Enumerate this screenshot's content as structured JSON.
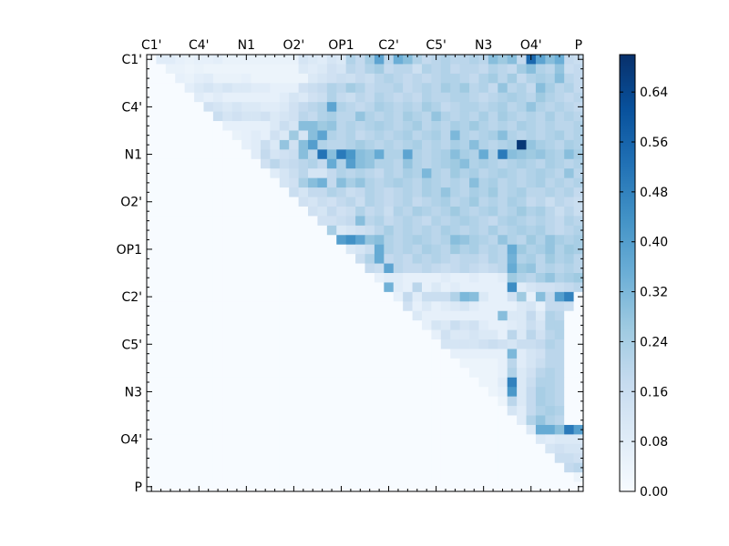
{
  "chart_data": {
    "type": "heatmap",
    "title": "",
    "xlabel": "",
    "ylabel": "",
    "matrix_size": 46,
    "labeled_ticks": [
      {
        "index": 0,
        "label": "C1'"
      },
      {
        "index": 5,
        "label": "C4'"
      },
      {
        "index": 10,
        "label": "N1"
      },
      {
        "index": 15,
        "label": "O2'"
      },
      {
        "index": 20,
        "label": "OP1"
      },
      {
        "index": 25,
        "label": "C2'"
      },
      {
        "index": 30,
        "label": "C5'"
      },
      {
        "index": 35,
        "label": "N3"
      },
      {
        "index": 40,
        "label": "O4'"
      },
      {
        "index": 45,
        "label": "P"
      }
    ],
    "x_tick_position": "top",
    "y_tick_position": "left",
    "grid": false,
    "colormap": "Blues",
    "colormap_stops": [
      "#f7fbff",
      "#deebf7",
      "#c6dbef",
      "#9ecae1",
      "#6baed6",
      "#4292c6",
      "#2171b5",
      "#08519c",
      "#08306b"
    ],
    "vmin": 0.0,
    "vmax": 0.7,
    "colorbar_ticks": [
      "0.00",
      "0.08",
      "0.16",
      "0.24",
      "0.32",
      "0.40",
      "0.48",
      "0.56",
      "0.64"
    ],
    "colorbar_tick_values": [
      0.0,
      0.08,
      0.16,
      0.24,
      0.32,
      0.4,
      0.48,
      0.56,
      0.64
    ],
    "rows": [
      {
        "i": 0,
        "v": [
          0.08,
          0.08,
          0.06,
          0.05,
          0.06,
          0.06,
          0.07,
          0.05,
          0.05,
          0.05,
          0.05,
          0.05,
          0.05,
          0.05,
          0.05,
          0.12,
          0.1,
          0.08,
          0.12,
          0.1,
          0.22,
          0.18,
          0.25,
          0.38,
          0.2,
          0.35,
          0.3,
          0.22,
          0.18,
          0.2,
          0.22,
          0.2,
          0.2,
          0.22,
          0.2,
          0.3,
          0.26,
          0.3,
          0.18,
          0.55,
          0.38,
          0.3,
          0.35,
          0.18,
          0.16
        ]
      },
      {
        "i": 1,
        "v": [
          0.05,
          0.05,
          0.04,
          0.05,
          0.04,
          0.04,
          0.04,
          0.04,
          0.04,
          0.04,
          0.04,
          0.04,
          0.04,
          0.04,
          0.1,
          0.08,
          0.1,
          0.14,
          0.12,
          0.2,
          0.18,
          0.22,
          0.25,
          0.18,
          0.2,
          0.2,
          0.15,
          0.22,
          0.2,
          0.22,
          0.18,
          0.2,
          0.2,
          0.18,
          0.22,
          0.2,
          0.18,
          0.25,
          0.3,
          0.22,
          0.2,
          0.28,
          0.16,
          0.18
        ]
      },
      {
        "i": 2,
        "v": [
          0.06,
          0.05,
          0.07,
          0.08,
          0.05,
          0.05,
          0.05,
          0.06,
          0.04,
          0.04,
          0.04,
          0.04,
          0.04,
          0.04,
          0.1,
          0.12,
          0.14,
          0.16,
          0.15,
          0.18,
          0.16,
          0.2,
          0.22,
          0.2,
          0.18,
          0.2,
          0.18,
          0.2,
          0.22,
          0.22,
          0.2,
          0.18,
          0.22,
          0.25,
          0.2,
          0.25,
          0.18,
          0.22,
          0.24,
          0.22,
          0.3,
          0.2,
          0.18
        ]
      },
      {
        "i": 3,
        "v": [
          0.07,
          0.1,
          0.12,
          0.1,
          0.12,
          0.1,
          0.1,
          0.08,
          0.08,
          0.06,
          0.06,
          0.06,
          0.14,
          0.16,
          0.18,
          0.22,
          0.2,
          0.25,
          0.22,
          0.18,
          0.2,
          0.2,
          0.22,
          0.18,
          0.2,
          0.22,
          0.2,
          0.25,
          0.22,
          0.26,
          0.2,
          0.22,
          0.18,
          0.28,
          0.2,
          0.22,
          0.18,
          0.3,
          0.24,
          0.2,
          0.22,
          0.18
        ]
      },
      {
        "i": 4,
        "v": [
          0.08,
          0.06,
          0.08,
          0.06,
          0.06,
          0.06,
          0.06,
          0.06,
          0.06,
          0.08,
          0.12,
          0.1,
          0.14,
          0.16,
          0.22,
          0.18,
          0.16,
          0.2,
          0.18,
          0.22,
          0.2,
          0.18,
          0.2,
          0.18,
          0.22,
          0.2,
          0.2,
          0.22,
          0.22,
          0.2,
          0.18,
          0.2,
          0.22,
          0.24,
          0.22,
          0.2,
          0.26,
          0.22,
          0.2,
          0.18,
          0.2
        ]
      },
      {
        "i": 5,
        "v": [
          0.14,
          0.12,
          0.1,
          0.12,
          0.1,
          0.1,
          0.08,
          0.08,
          0.1,
          0.14,
          0.18,
          0.2,
          0.22,
          0.38,
          0.22,
          0.2,
          0.18,
          0.2,
          0.24,
          0.22,
          0.2,
          0.22,
          0.2,
          0.25,
          0.22,
          0.18,
          0.2,
          0.22,
          0.22,
          0.2,
          0.22,
          0.24,
          0.2,
          0.22,
          0.28,
          0.22,
          0.2,
          0.22,
          0.2,
          0.18
        ]
      },
      {
        "i": 6,
        "v": [
          0.16,
          0.12,
          0.14,
          0.12,
          0.12,
          0.14,
          0.1,
          0.12,
          0.14,
          0.2,
          0.18,
          0.22,
          0.24,
          0.2,
          0.2,
          0.28,
          0.22,
          0.2,
          0.22,
          0.2,
          0.25,
          0.22,
          0.2,
          0.28,
          0.22,
          0.2,
          0.22,
          0.2,
          0.24,
          0.2,
          0.25,
          0.22,
          0.2,
          0.22,
          0.2,
          0.24,
          0.2,
          0.22,
          0.2
        ]
      },
      {
        "i": 7,
        "v": [
          0.06,
          0.06,
          0.06,
          0.06,
          0.06,
          0.1,
          0.16,
          0.12,
          0.3,
          0.3,
          0.26,
          0.28,
          0.2,
          0.22,
          0.2,
          0.22,
          0.24,
          0.22,
          0.2,
          0.22,
          0.25,
          0.2,
          0.22,
          0.2,
          0.24,
          0.22,
          0.26,
          0.22,
          0.2,
          0.22,
          0.2,
          0.24,
          0.22,
          0.2,
          0.22,
          0.2,
          0.2,
          0.22
        ]
      },
      {
        "i": 8,
        "v": [
          0.05,
          0.06,
          0.08,
          0.06,
          0.14,
          0.1,
          0.26,
          0.12,
          0.3,
          0.38,
          0.22,
          0.2,
          0.22,
          0.18,
          0.2,
          0.22,
          0.2,
          0.22,
          0.24,
          0.2,
          0.22,
          0.24,
          0.2,
          0.32,
          0.22,
          0.2,
          0.22,
          0.24,
          0.3,
          0.22,
          0.2,
          0.22,
          0.2,
          0.22,
          0.24,
          0.2,
          0.22
        ]
      },
      {
        "i": 9,
        "v": [
          0.06,
          0.08,
          0.16,
          0.1,
          0.28,
          0.14,
          0.3,
          0.4,
          0.22,
          0.2,
          0.2,
          0.22,
          0.25,
          0.22,
          0.2,
          0.22,
          0.2,
          0.22,
          0.24,
          0.2,
          0.22,
          0.2,
          0.24,
          0.22,
          0.3,
          0.22,
          0.2,
          0.22,
          0.24,
          0.68,
          0.28,
          0.24,
          0.22,
          0.2,
          0.24,
          0.22
        ]
      },
      {
        "i": 10,
        "v": [
          0.08,
          0.18,
          0.12,
          0.14,
          0.16,
          0.3,
          0.2,
          0.52,
          0.3,
          0.5,
          0.42,
          0.3,
          0.28,
          0.36,
          0.22,
          0.22,
          0.38,
          0.22,
          0.2,
          0.22,
          0.24,
          0.3,
          0.24,
          0.22,
          0.36,
          0.22,
          0.5,
          0.3,
          0.28,
          0.26,
          0.28,
          0.24,
          0.22,
          0.3,
          0.24
        ]
      },
      {
        "i": 11,
        "v": [
          0.14,
          0.2,
          0.16,
          0.18,
          0.2,
          0.22,
          0.18,
          0.36,
          0.22,
          0.4,
          0.3,
          0.28,
          0.22,
          0.22,
          0.2,
          0.28,
          0.22,
          0.2,
          0.22,
          0.24,
          0.26,
          0.3,
          0.22,
          0.24,
          0.22,
          0.2,
          0.22,
          0.24,
          0.22,
          0.2,
          0.24,
          0.22,
          0.2,
          0.22
        ]
      },
      {
        "i": 12,
        "v": [
          0.08,
          0.12,
          0.16,
          0.2,
          0.12,
          0.12,
          0.18,
          0.22,
          0.2,
          0.22,
          0.2,
          0.18,
          0.22,
          0.2,
          0.24,
          0.22,
          0.32,
          0.22,
          0.2,
          0.26,
          0.22,
          0.24,
          0.2,
          0.22,
          0.24,
          0.22,
          0.2,
          0.22,
          0.24,
          0.22,
          0.2,
          0.28,
          0.2
        ]
      },
      {
        "i": 13,
        "v": [
          0.12,
          0.14,
          0.24,
          0.3,
          0.34,
          0.18,
          0.3,
          0.24,
          0.28,
          0.22,
          0.2,
          0.22,
          0.24,
          0.22,
          0.2,
          0.24,
          0.22,
          0.2,
          0.22,
          0.2,
          0.3,
          0.22,
          0.24,
          0.2,
          0.22,
          0.2,
          0.22,
          0.24,
          0.2,
          0.22,
          0.2,
          0.22
        ]
      },
      {
        "i": 14,
        "v": [
          0.16,
          0.12,
          0.18,
          0.18,
          0.22,
          0.2,
          0.16,
          0.18,
          0.22,
          0.2,
          0.18,
          0.2,
          0.22,
          0.2,
          0.24,
          0.22,
          0.28,
          0.22,
          0.2,
          0.24,
          0.22,
          0.26,
          0.2,
          0.22,
          0.24,
          0.2,
          0.2,
          0.22,
          0.2,
          0.22,
          0.18
        ]
      },
      {
        "i": 15,
        "v": [
          0.14,
          0.12,
          0.16,
          0.14,
          0.18,
          0.2,
          0.16,
          0.22,
          0.2,
          0.18,
          0.2,
          0.22,
          0.18,
          0.2,
          0.22,
          0.24,
          0.2,
          0.22,
          0.26,
          0.2,
          0.22,
          0.2,
          0.24,
          0.22,
          0.18,
          0.2,
          0.16,
          0.2,
          0.18,
          0.16
        ]
      },
      {
        "i": 16,
        "v": [
          0.14,
          0.12,
          0.18,
          0.14,
          0.16,
          0.22,
          0.18,
          0.2,
          0.16,
          0.22,
          0.2,
          0.24,
          0.22,
          0.2,
          0.22,
          0.26,
          0.22,
          0.2,
          0.22,
          0.24,
          0.2,
          0.22,
          0.26,
          0.22,
          0.24,
          0.2,
          0.16,
          0.2,
          0.16
        ]
      },
      {
        "i": 17,
        "v": [
          0.14,
          0.14,
          0.16,
          0.18,
          0.3,
          0.2,
          0.22,
          0.18,
          0.2,
          0.22,
          0.2,
          0.18,
          0.22,
          0.2,
          0.22,
          0.24,
          0.22,
          0.2,
          0.18,
          0.22,
          0.24,
          0.22,
          0.2,
          0.22,
          0.2,
          0.18,
          0.22,
          0.2
        ]
      },
      {
        "i": 18,
        "v": [
          0.24,
          0.1,
          0.12,
          0.14,
          0.16,
          0.2,
          0.24,
          0.2,
          0.22,
          0.2,
          0.22,
          0.2,
          0.24,
          0.22,
          0.2,
          0.22,
          0.2,
          0.24,
          0.2,
          0.22,
          0.24,
          0.22,
          0.24,
          0.2,
          0.18,
          0.2,
          0.22
        ]
      },
      {
        "i": 19,
        "v": [
          0.4,
          0.44,
          0.38,
          0.28,
          0.3,
          0.22,
          0.2,
          0.22,
          0.24,
          0.22,
          0.2,
          0.22,
          0.3,
          0.28,
          0.24,
          0.22,
          0.2,
          0.28,
          0.22,
          0.2,
          0.26,
          0.22,
          0.28,
          0.24,
          0.22,
          0.24
        ]
      },
      {
        "i": 20,
        "v": [
          0.1,
          0.12,
          0.16,
          0.36,
          0.22,
          0.2,
          0.22,
          0.2,
          0.24,
          0.22,
          0.2,
          0.26,
          0.22,
          0.24,
          0.2,
          0.22,
          0.2,
          0.36,
          0.26,
          0.22,
          0.24,
          0.28,
          0.22,
          0.26,
          0.24
        ]
      },
      {
        "i": 21,
        "v": [
          0.16,
          0.22,
          0.36,
          0.18,
          0.2,
          0.18,
          0.22,
          0.2,
          0.22,
          0.2,
          0.18,
          0.2,
          0.2,
          0.18,
          0.22,
          0.2,
          0.34,
          0.22,
          0.24,
          0.2,
          0.26,
          0.22,
          0.24,
          0.2
        ]
      },
      {
        "i": 22,
        "v": [
          0.18,
          0.16,
          0.38,
          0.2,
          0.18,
          0.18,
          0.2,
          0.18,
          0.16,
          0.18,
          0.2,
          0.18,
          0.16,
          0.18,
          0.2,
          0.36,
          0.26,
          0.28,
          0.2,
          0.22,
          0.2,
          0.22,
          0.2
        ]
      },
      {
        "i": 23,
        "v": [
          0.06,
          0.08,
          0.08,
          0.06,
          0.06,
          0.06,
          0.06,
          0.08,
          0.06,
          0.06,
          0.08,
          0.06,
          0.06,
          0.08,
          0.26,
          0.22,
          0.2,
          0.24,
          0.28,
          0.22,
          0.24,
          0.26
        ]
      },
      {
        "i": 24,
        "v": [
          0.34,
          0.08,
          0.06,
          0.2,
          0.06,
          0.1,
          0.06,
          0.08,
          0.06,
          0.06,
          0.06,
          0.06,
          0.06,
          0.45,
          0.08,
          0.12,
          0.14,
          0.14,
          0.16,
          0.18,
          0.2
        ]
      },
      {
        "i": 25,
        "v": [
          0.06,
          0.18,
          0.08,
          0.16,
          0.16,
          0.16,
          0.22,
          0.32,
          0.3,
          0.1,
          0.06,
          0.06,
          0.14,
          0.26,
          0.06,
          0.3,
          0.18,
          0.4,
          0.48
        ]
      },
      {
        "i": 26,
        "v": [
          0.14,
          0.06,
          0.1,
          0.06,
          0.08,
          0.1,
          0.12,
          0.08,
          0.06,
          0.06,
          0.06,
          0.06,
          0.1,
          0.12,
          0.06,
          0.18,
          0.18,
          0.16
        ]
      },
      {
        "i": 27,
        "v": [
          0.1,
          0.06,
          0.06,
          0.06,
          0.06,
          0.06,
          0.06,
          0.06,
          0.06,
          0.3,
          0.1,
          0.1,
          0.18,
          0.1,
          0.22,
          0.2
        ]
      },
      {
        "i": 28,
        "v": [
          0.06,
          0.12,
          0.1,
          0.16,
          0.12,
          0.14,
          0.08,
          0.06,
          0.06,
          0.08,
          0.1,
          0.16,
          0.12,
          0.22,
          0.22
        ]
      },
      {
        "i": 29,
        "v": [
          0.06,
          0.14,
          0.1,
          0.1,
          0.12,
          0.1,
          0.1,
          0.06,
          0.2,
          0.1,
          0.2,
          0.14,
          0.2,
          0.22
        ]
      },
      {
        "i": 30,
        "v": [
          0.12,
          0.12,
          0.12,
          0.12,
          0.14,
          0.16,
          0.14,
          0.12,
          0.16,
          0.16,
          0.18,
          0.22,
          0.2
        ]
      },
      {
        "i": 31,
        "v": [
          0.06,
          0.06,
          0.06,
          0.06,
          0.06,
          0.06,
          0.32,
          0.08,
          0.12,
          0.14,
          0.2,
          0.2
        ]
      },
      {
        "i": 32,
        "v": [
          0.04,
          0.04,
          0.04,
          0.04,
          0.06,
          0.2,
          0.08,
          0.12,
          0.16,
          0.2,
          0.2
        ]
      },
      {
        "i": 33,
        "v": [
          0.04,
          0.04,
          0.04,
          0.06,
          0.22,
          0.1,
          0.14,
          0.2,
          0.22,
          0.2
        ]
      },
      {
        "i": 34,
        "v": [
          0.04,
          0.04,
          0.08,
          0.48,
          0.1,
          0.16,
          0.22,
          0.22,
          0.2
        ]
      },
      {
        "i": 35,
        "v": [
          0.04,
          0.06,
          0.42,
          0.1,
          0.18,
          0.24,
          0.22,
          0.2
        ]
      },
      {
        "i": 36,
        "v": [
          0.04,
          0.2,
          0.1,
          0.18,
          0.24,
          0.22,
          0.2
        ]
      },
      {
        "i": 37,
        "v": [
          0.12,
          0.08,
          0.18,
          0.22,
          0.24,
          0.22
        ]
      },
      {
        "i": 38,
        "v": [
          0.08,
          0.22,
          0.28,
          0.22,
          0.2
        ]
      },
      {
        "i": 39,
        "v": [
          0.1,
          0.36,
          0.36,
          0.3,
          0.5,
          0.4
        ]
      },
      {
        "i": 40,
        "v": [
          0.1,
          0.08,
          0.1,
          0.1,
          0.1
        ]
      },
      {
        "i": 41,
        "v": [
          0.12,
          0.14,
          0.12,
          0.12
        ]
      },
      {
        "i": 42,
        "v": [
          0.16,
          0.16,
          0.14
        ]
      },
      {
        "i": 43,
        "v": [
          0.18,
          0.2
        ]
      },
      {
        "i": 44,
        "v": [
          0.04
        ]
      }
    ]
  }
}
